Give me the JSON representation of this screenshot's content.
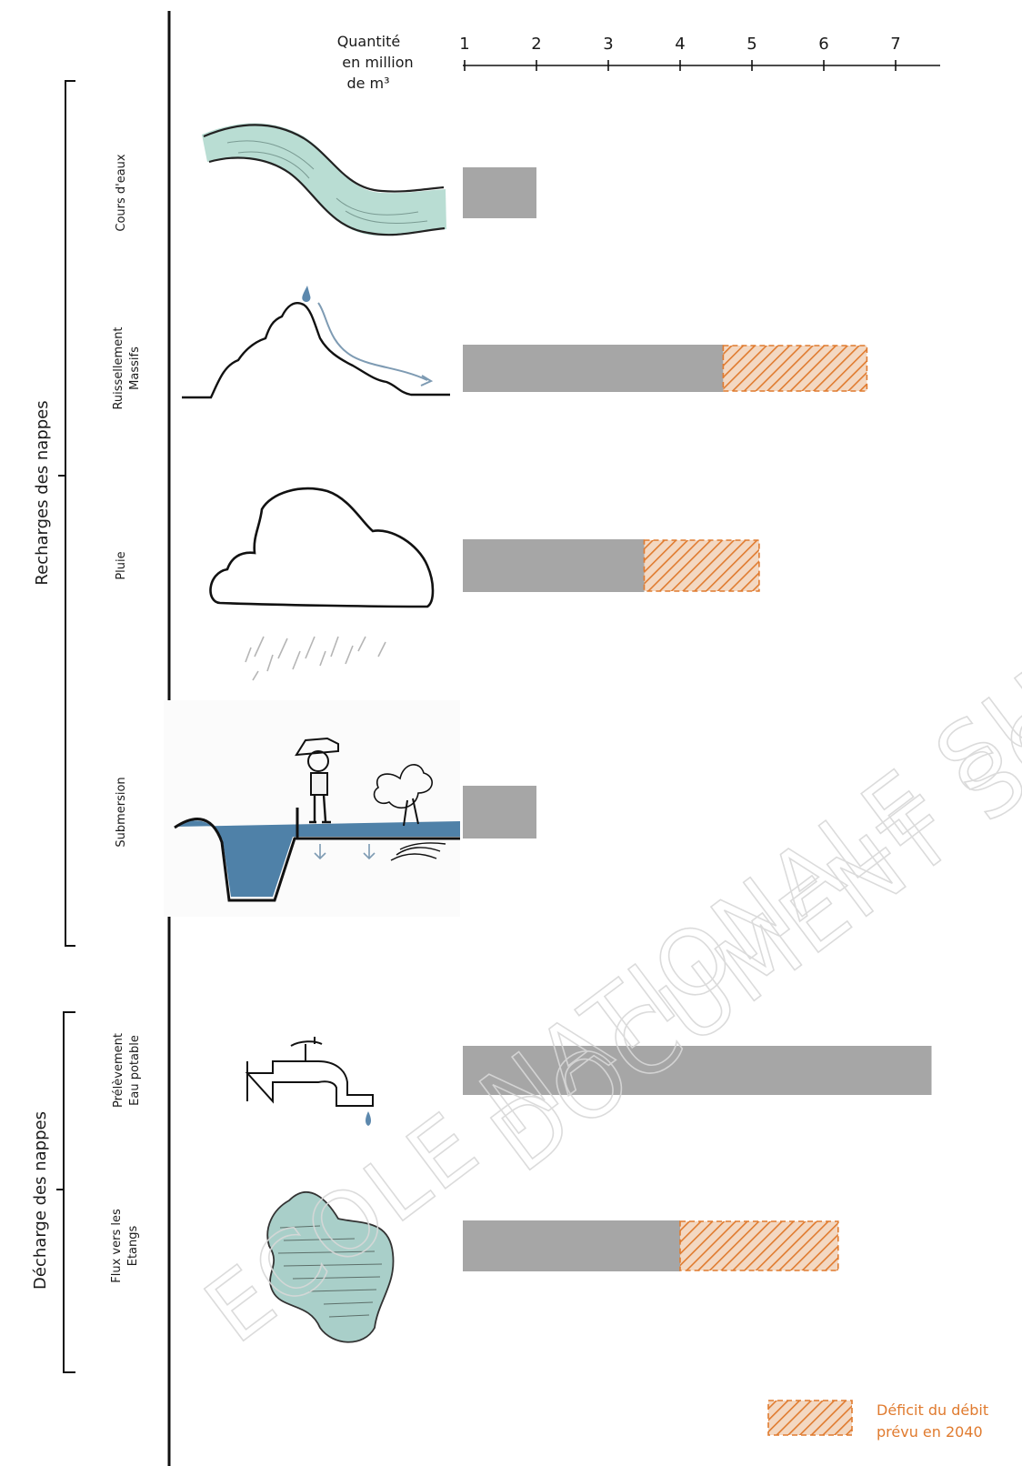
{
  "chart_data": {
    "type": "bar",
    "axis_label_lines": [
      "Quantité",
      "en million",
      "de m³"
    ],
    "tick_labels": [
      "1",
      "2",
      "3",
      "4",
      "5",
      "6",
      "7"
    ],
    "xlim": [
      1,
      7.5
    ],
    "groups": [
      {
        "label": "Recharges des nappes"
      },
      {
        "label": "Décharge des nappes"
      }
    ],
    "categories": [
      {
        "label_lines": [
          "Cours d'eaux"
        ],
        "group": 0,
        "icon": "river-icon",
        "value": 2.0,
        "deficit": 0
      },
      {
        "label_lines": [
          "Ruissellement",
          "Massifs"
        ],
        "group": 0,
        "icon": "mountain-runoff-icon",
        "value": 4.6,
        "deficit": 2.0
      },
      {
        "label_lines": [
          "Pluie"
        ],
        "group": 0,
        "icon": "cloud-rain-icon",
        "value": 3.5,
        "deficit": 1.6
      },
      {
        "label_lines": [
          "Submersion"
        ],
        "group": 0,
        "icon": "submersion-icon",
        "value": 2.0,
        "deficit": 0
      },
      {
        "label_lines": [
          "Prélèvement",
          "Eau potable"
        ],
        "group": 1,
        "icon": "tap-icon",
        "value": 7.5,
        "deficit": 0
      },
      {
        "label_lines": [
          "Flux vers les",
          "Etangs"
        ],
        "group": 1,
        "icon": "pond-icon",
        "value": 4.0,
        "deficit": 2.2
      }
    ],
    "legend": {
      "label_lines": [
        "Déficit du débit",
        "prévu en 2040"
      ],
      "position": "bottom-right"
    },
    "colors": {
      "bar": "#a6a6a6",
      "deficit": "#e07b2f",
      "river": "#b9ddd3",
      "water": "#4f81a8",
      "pond": "#a9cfc9"
    }
  },
  "watermark": [
    "ECOLE NATIONALE SUPERIEURE D'A",
    "DOCUMENT SOUMIS A"
  ]
}
